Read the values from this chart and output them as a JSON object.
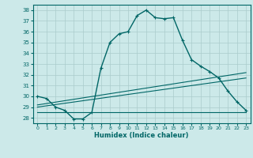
{
  "xlabel": "Humidex (Indice chaleur)",
  "bg_color": "#cce9e9",
  "grid_color": "#aacccc",
  "line_color": "#006666",
  "xlim": [
    -0.5,
    23.5
  ],
  "ylim": [
    27.5,
    38.5
  ],
  "xticks": [
    0,
    1,
    2,
    3,
    4,
    5,
    6,
    7,
    8,
    9,
    10,
    11,
    12,
    13,
    14,
    15,
    16,
    17,
    18,
    19,
    20,
    21,
    22,
    23
  ],
  "yticks": [
    28,
    29,
    30,
    31,
    32,
    33,
    34,
    35,
    36,
    37,
    38
  ],
  "main_line": [
    [
      0,
      30.0
    ],
    [
      1,
      29.8
    ],
    [
      2,
      29.0
    ],
    [
      3,
      28.7
    ],
    [
      4,
      27.9
    ],
    [
      5,
      27.9
    ],
    [
      6,
      28.5
    ],
    [
      7,
      32.6
    ],
    [
      8,
      35.0
    ],
    [
      9,
      35.8
    ],
    [
      10,
      36.0
    ],
    [
      11,
      37.5
    ],
    [
      12,
      38.0
    ],
    [
      13,
      37.3
    ],
    [
      14,
      37.2
    ],
    [
      15,
      37.3
    ],
    [
      16,
      35.2
    ],
    [
      17,
      33.4
    ],
    [
      18,
      32.8
    ],
    [
      19,
      32.3
    ],
    [
      20,
      31.7
    ],
    [
      21,
      30.5
    ],
    [
      22,
      29.5
    ],
    [
      23,
      28.7
    ]
  ],
  "linear_line1": [
    [
      0,
      29.0
    ],
    [
      23,
      31.7
    ]
  ],
  "linear_line2": [
    [
      0,
      28.5
    ],
    [
      23,
      28.5
    ]
  ],
  "linear_line3": [
    [
      0,
      29.2
    ],
    [
      23,
      32.2
    ]
  ]
}
